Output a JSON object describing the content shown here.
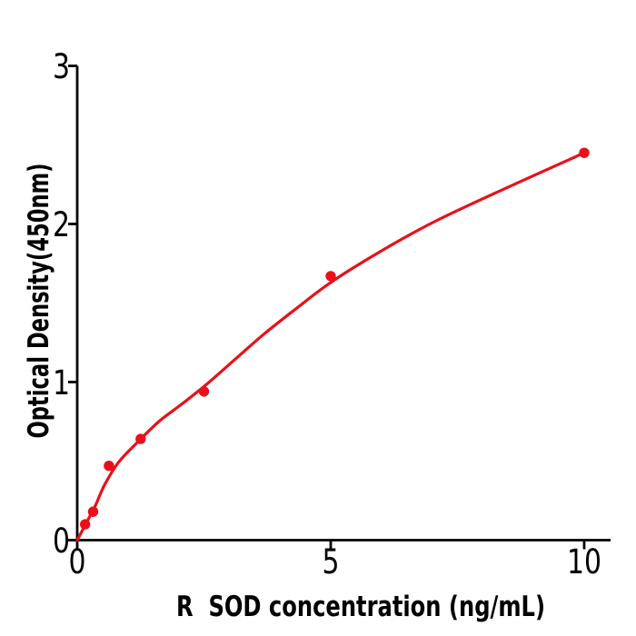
{
  "chart_data": {
    "type": "scatter",
    "title": "",
    "xlabel": "R  SOD concentration (ng/mL)",
    "ylabel": "Optical Density(450nm)",
    "x": [
      0.156,
      0.313,
      0.625,
      1.25,
      2.5,
      5,
      10
    ],
    "y": [
      0.1,
      0.18,
      0.47,
      0.64,
      0.94,
      1.67,
      2.45
    ],
    "fit_curve": [
      [
        0,
        0
      ],
      [
        0.18,
        0.11
      ],
      [
        0.36,
        0.22
      ],
      [
        0.54,
        0.35
      ],
      [
        0.81,
        0.49
      ],
      [
        1.16,
        0.61
      ],
      [
        1.61,
        0.75
      ],
      [
        2.06,
        0.86
      ],
      [
        2.53,
        0.98
      ],
      [
        3.1,
        1.14
      ],
      [
        3.67,
        1.3
      ],
      [
        4.3,
        1.46
      ],
      [
        5.0,
        1.63
      ],
      [
        6.0,
        1.83
      ],
      [
        7.08,
        2.02
      ],
      [
        8.55,
        2.24
      ],
      [
        10,
        2.45
      ]
    ],
    "xlim": [
      0,
      10.52
    ],
    "ylim": [
      0,
      3
    ],
    "x_ticks": [
      0,
      5,
      10
    ],
    "x_tick_labels": [
      "0",
      "5",
      "10"
    ],
    "y_ticks": [
      0,
      1,
      2,
      3
    ],
    "y_tick_labels": [
      "0",
      "1",
      "2",
      "3"
    ],
    "grid": false,
    "legend": "none",
    "marker_color": "#e8111a",
    "line_color": "#e8111a",
    "axis_color": "#000000",
    "text_color": "#000000",
    "background_color": "#ffffff"
  }
}
